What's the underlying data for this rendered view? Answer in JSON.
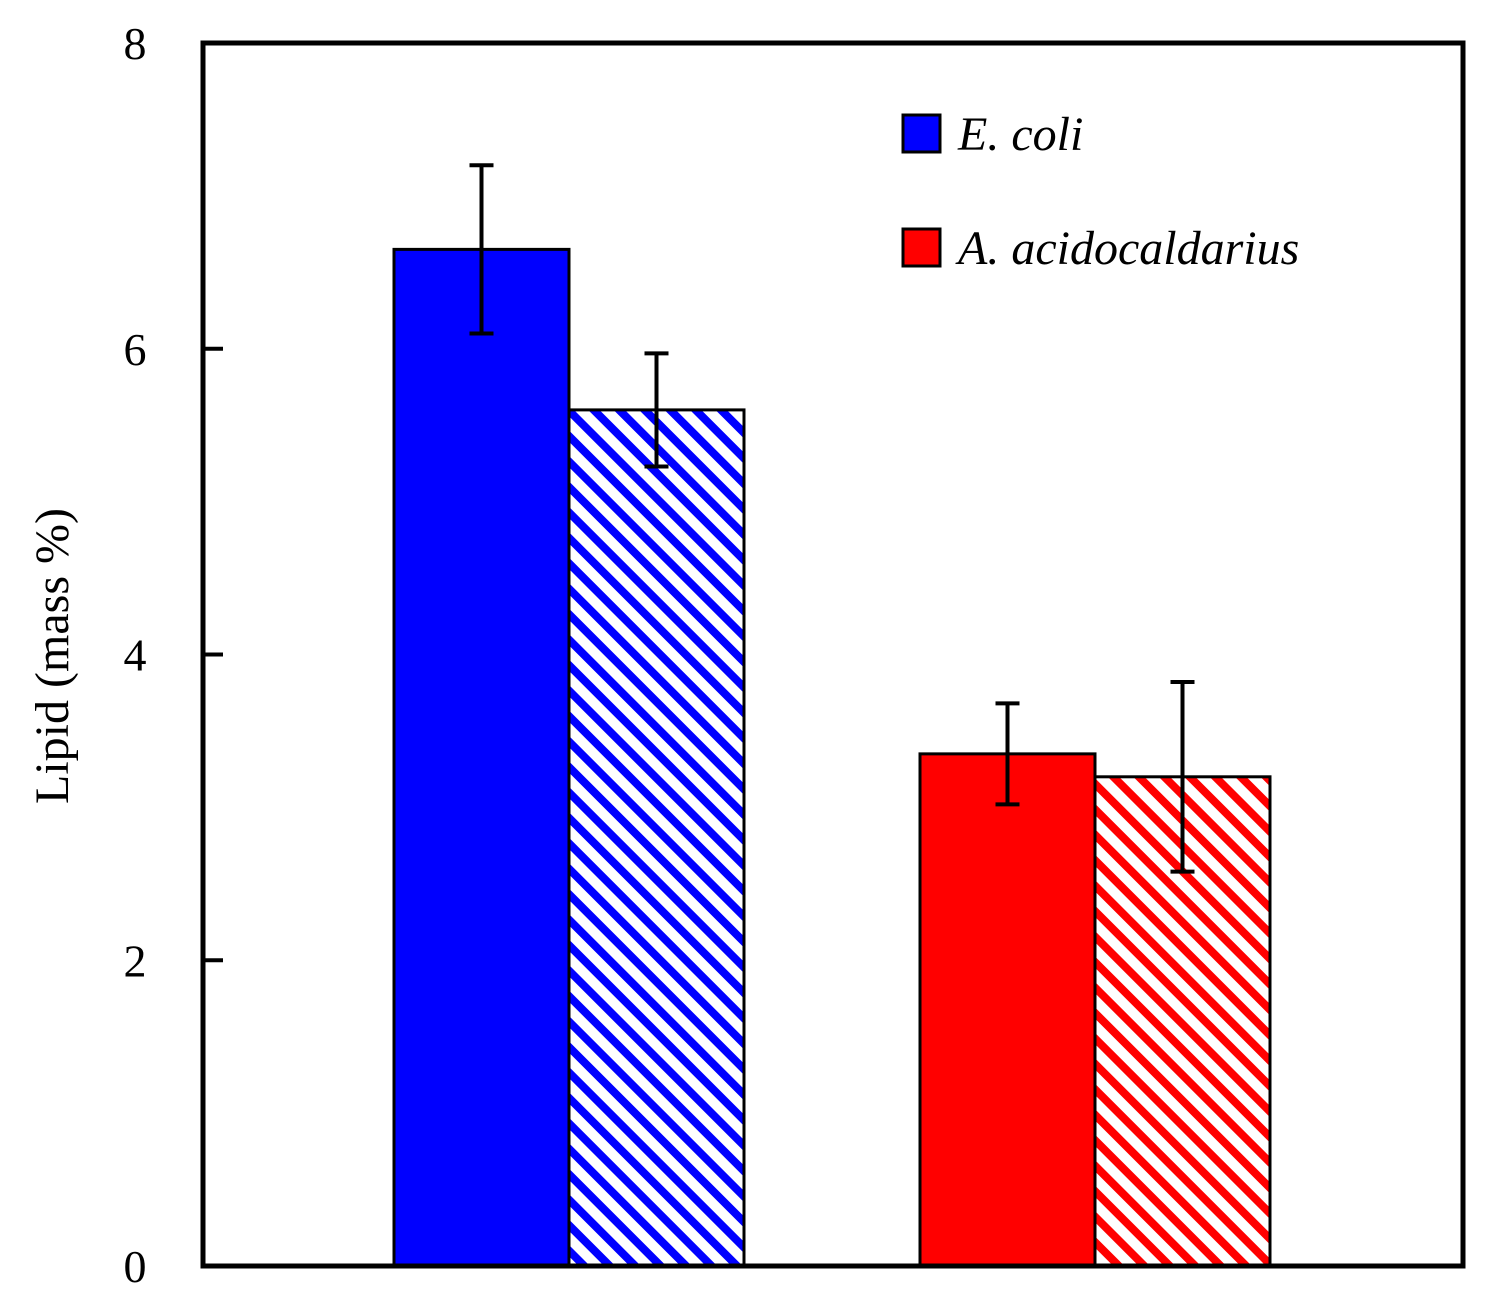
{
  "chart_data": {
    "type": "bar",
    "title": "",
    "xlabel": "",
    "ylabel": "Lipid (mass %)",
    "ylim": [
      0,
      8
    ],
    "yticks": [
      0,
      2,
      4,
      6,
      8
    ],
    "grid": false,
    "legend_position": "top-right",
    "groups": [
      {
        "name": "E. coli",
        "color": "#0000ff",
        "bars": [
          {
            "style": "solid",
            "value": 6.65,
            "error": 0.55
          },
          {
            "style": "hatched",
            "value": 5.6,
            "error": 0.37
          }
        ]
      },
      {
        "name": "A. acidocaldarius",
        "color": "#ff0000",
        "bars": [
          {
            "style": "solid",
            "value": 3.35,
            "error": 0.33
          },
          {
            "style": "hatched",
            "value": 3.2,
            "error": 0.62
          }
        ]
      }
    ],
    "legend": [
      {
        "label": "E. coli",
        "color": "#0000ff"
      },
      {
        "label": "A. acidocaldarius",
        "color": "#ff0000"
      }
    ]
  }
}
